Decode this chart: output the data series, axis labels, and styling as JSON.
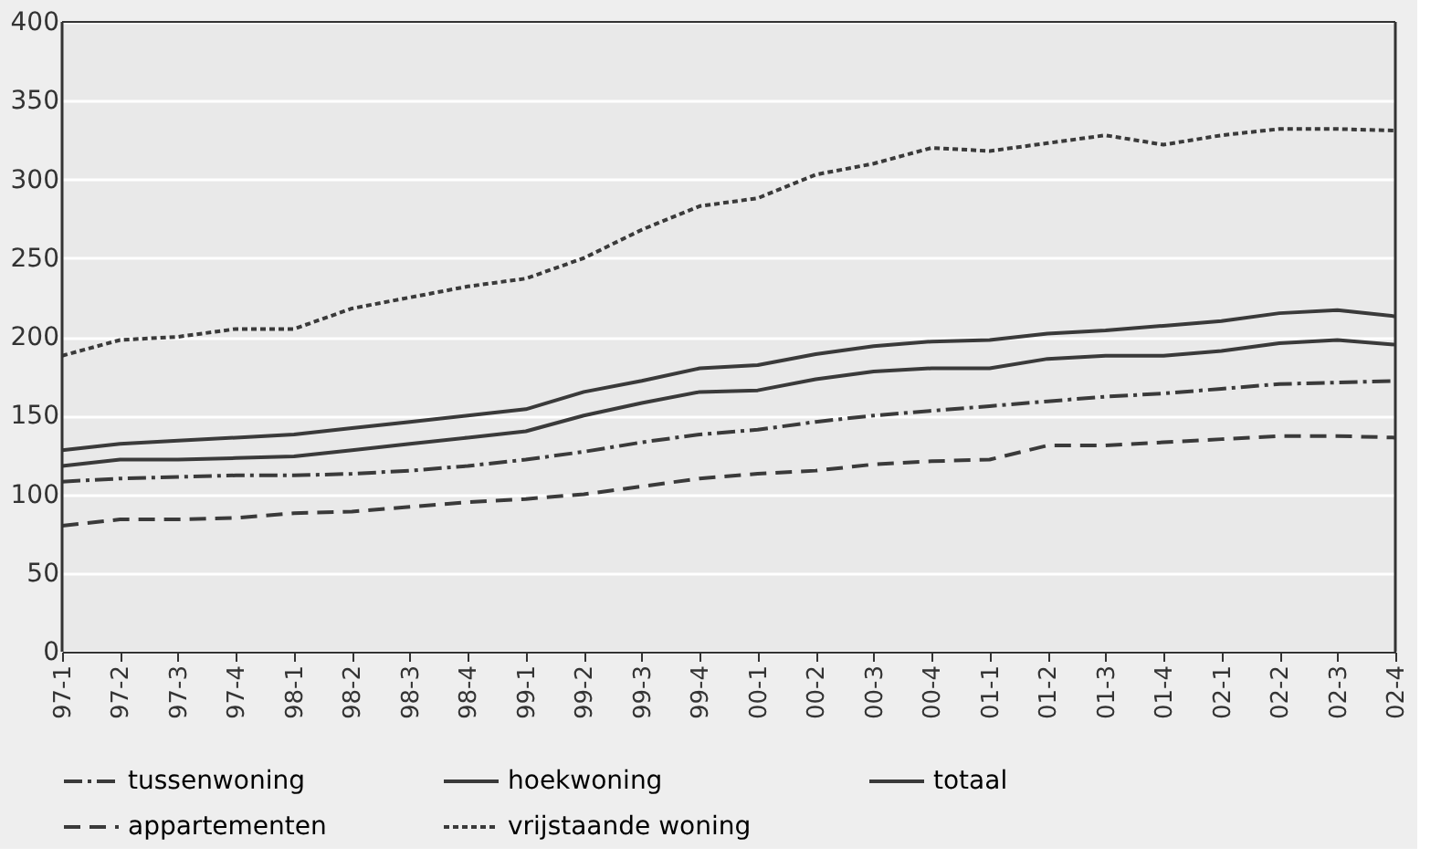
{
  "chart_data": {
    "type": "line",
    "categories": [
      "97-1",
      "97-2",
      "97-3",
      "97-4",
      "98-1",
      "98-2",
      "98-3",
      "98-4",
      "99-1",
      "99-2",
      "99-3",
      "99-4",
      "00-1",
      "00-2",
      "00-3",
      "00-4",
      "01-1",
      "01-2",
      "01-3",
      "01-4",
      "02-1",
      "02-2",
      "02-3",
      "02-4"
    ],
    "series": [
      {
        "name": "tussenwoning",
        "color": "#3a3a3a",
        "line_style": "dashdot",
        "values": [
          108,
          110,
          111,
          112,
          112,
          113,
          115,
          118,
          122,
          127,
          133,
          138,
          141,
          146,
          150,
          153,
          156,
          159,
          162,
          164,
          167,
          170,
          171,
          172
        ]
      },
      {
        "name": "hoekwoning",
        "color": "#3a3a3a",
        "line_style": "solid",
        "values": [
          128,
          132,
          134,
          136,
          138,
          142,
          146,
          150,
          154,
          165,
          172,
          180,
          182,
          189,
          194,
          197,
          198,
          202,
          204,
          207,
          210,
          215,
          217,
          213
        ]
      },
      {
        "name": "totaal",
        "color": "#3a3a3a",
        "line_style": "solid",
        "values": [
          118,
          122,
          122,
          123,
          124,
          128,
          132,
          136,
          140,
          150,
          158,
          165,
          166,
          173,
          178,
          180,
          180,
          186,
          188,
          188,
          191,
          196,
          198,
          195
        ]
      },
      {
        "name": "appartementen",
        "color": "#3a3a3a",
        "line_style": "dashed",
        "values": [
          80,
          84,
          84,
          85,
          88,
          89,
          92,
          95,
          97,
          100,
          105,
          110,
          113,
          115,
          119,
          121,
          122,
          131,
          131,
          133,
          135,
          137,
          137,
          136
        ]
      },
      {
        "name": "vrijstaande woning",
        "color": "#3a3a3a",
        "line_style": "dotted",
        "values": [
          188,
          198,
          200,
          205,
          205,
          218,
          225,
          232,
          237,
          250,
          268,
          283,
          288,
          303,
          310,
          320,
          318,
          323,
          328,
          322,
          328,
          332,
          332,
          331
        ]
      }
    ],
    "ylim": [
      0,
      400
    ],
    "yticks": [
      0,
      50,
      100,
      150,
      200,
      250,
      300,
      350,
      400
    ],
    "grid": "y",
    "legend": "bottom",
    "marker": "none"
  }
}
